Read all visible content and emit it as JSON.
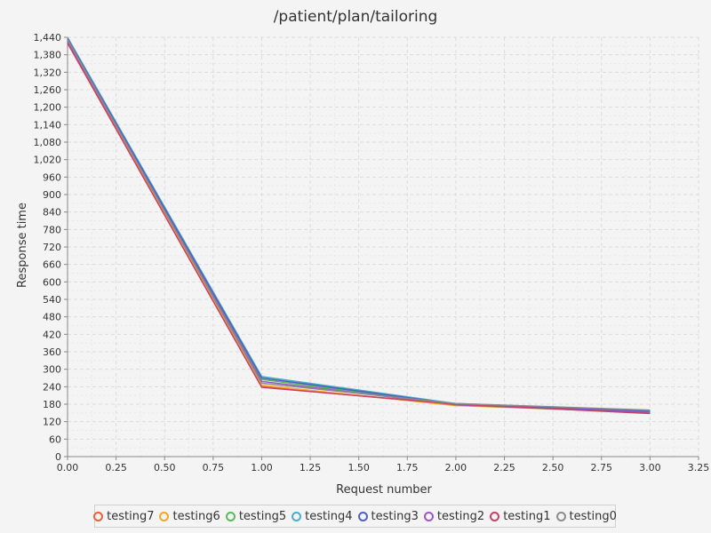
{
  "chart_data": {
    "type": "line",
    "title": "/patient/plan/tailoring",
    "xlabel": "Request number",
    "ylabel": "Response time",
    "xlim": [
      0,
      3.25
    ],
    "ylim": [
      0,
      1440
    ],
    "xticks": [
      0,
      0.25,
      0.5,
      0.75,
      1,
      1.25,
      1.5,
      1.75,
      2,
      2.25,
      2.5,
      2.75,
      3,
      3.25
    ],
    "xtick_labels": [
      "0.00",
      "0.25",
      "0.50",
      "0.75",
      "1.00",
      "1.25",
      "1.50",
      "1.75",
      "2.00",
      "2.25",
      "2.50",
      "2.75",
      "3.00",
      "3.25"
    ],
    "yticks": [
      0,
      60,
      120,
      180,
      240,
      300,
      360,
      420,
      480,
      540,
      600,
      660,
      720,
      780,
      840,
      900,
      960,
      1020,
      1080,
      1140,
      1200,
      1260,
      1320,
      1380,
      1440
    ],
    "ytick_labels": [
      "0",
      "60",
      "120",
      "180",
      "240",
      "300",
      "360",
      "420",
      "480",
      "540",
      "600",
      "660",
      "720",
      "780",
      "840",
      "900",
      "960",
      "1,020",
      "1,080",
      "1,140",
      "1,200",
      "1,260",
      "1,320",
      "1,380",
      "1,440"
    ],
    "grid": true,
    "legend_position": "bottom",
    "x": [
      0,
      1,
      2,
      3
    ],
    "series": [
      {
        "name": "testing7",
        "color": "#e8603c",
        "values": [
          1425,
          240,
          178,
          155
        ]
      },
      {
        "name": "testing6",
        "color": "#f5a623",
        "values": [
          1430,
          245,
          175,
          152
        ]
      },
      {
        "name": "testing5",
        "color": "#5cb85c",
        "values": [
          1438,
          265,
          178,
          150
        ]
      },
      {
        "name": "testing4",
        "color": "#4bacc6",
        "values": [
          1440,
          275,
          182,
          158
        ]
      },
      {
        "name": "testing3",
        "color": "#4f5fc6",
        "values": [
          1435,
          270,
          180,
          155
        ]
      },
      {
        "name": "testing2",
        "color": "#9b59c6",
        "values": [
          1428,
          258,
          178,
          152
        ]
      },
      {
        "name": "testing1",
        "color": "#c94066",
        "values": [
          1420,
          238,
          180,
          148
        ]
      },
      {
        "name": "testing0",
        "color": "#8c8c8c",
        "values": [
          1432,
          252,
          182,
          160
        ]
      }
    ]
  }
}
